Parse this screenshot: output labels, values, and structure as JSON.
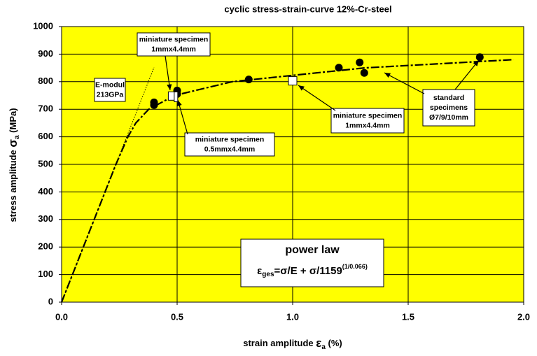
{
  "chart_data": {
    "type": "scatter",
    "title": "cyclic stress-strain-curve 12%-Cr-steel",
    "x_label": {
      "text": "strain amplitude",
      "symbol": "ε",
      "sub": "a",
      "unit": "(%)"
    },
    "y_label": {
      "text": "stress amplitude",
      "symbol": "σ",
      "sub": "a",
      "unit": "(MPa)"
    },
    "xlim": [
      0,
      2
    ],
    "ylim": [
      0,
      1000
    ],
    "xticks": [
      {
        "value": 0,
        "label": "0.0"
      },
      0.5,
      {
        "value": 1,
        "label": "1.0"
      },
      1.5,
      {
        "value": 2,
        "label": "2.0"
      }
    ],
    "yticks": [
      0,
      100,
      200,
      300,
      400,
      500,
      600,
      700,
      800,
      900,
      1000
    ],
    "grid": true,
    "background": "#ffff00",
    "series": [
      {
        "type": "line",
        "style": "dashdot",
        "color": "#000000",
        "x": [
          0,
          0.235,
          0.287,
          0.321,
          0.377,
          0.489,
          0.738,
          1.31,
          1.956
        ],
        "values": [
          0,
          500,
          600,
          650,
          700,
          750,
          800,
          850,
          880
        ]
      },
      {
        "type": "line",
        "style": "dotted",
        "color": "#000000",
        "x": [
          0,
          0.4
        ],
        "values": [
          0,
          852
        ]
      },
      {
        "type": "scatter",
        "marker": "circle",
        "color": "#000000",
        "x": [
          0.4,
          0.4,
          0.5,
          0.5,
          0.81,
          1.2,
          1.29,
          1.31,
          1.81
        ],
        "values": [
          715,
          725,
          768,
          755,
          808,
          851,
          870,
          832,
          889
        ]
      },
      {
        "type": "scatter",
        "marker": "square",
        "color": "#ffffff",
        "x": [
          0.48,
          1.0
        ],
        "values": [
          748,
          803
        ]
      },
      {
        "type": "scatter",
        "marker": "thin-square",
        "color": "#ffffff",
        "x": [
          0.495
        ],
        "values": [
          745
        ]
      }
    ],
    "annotations": [
      {
        "lines": [
          "miniature specimen",
          "1mmx4.4mm"
        ]
      },
      {
        "lines": [
          "E-modul",
          "213GPa"
        ]
      },
      {
        "lines": [
          "miniature specimen",
          "0.5mmx4.4mm"
        ]
      },
      {
        "lines": [
          "miniature specimen",
          "1mmx4.4mm"
        ]
      },
      {
        "lines": [
          "standard",
          "specimens",
          "Ø7/9/10mm"
        ]
      }
    ],
    "formula_box": {
      "title": "power law",
      "base": "ε",
      "sub": "ges",
      "main": "=σ/E + σ/1159",
      "sup": "(1/0.066)"
    }
  }
}
